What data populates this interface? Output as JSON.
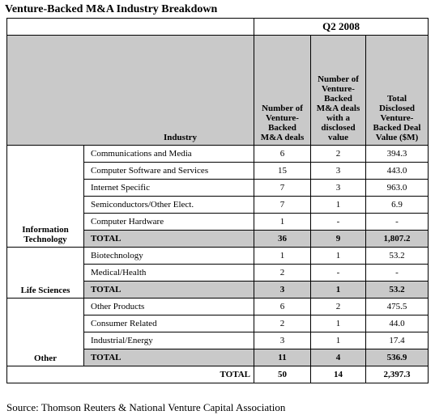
{
  "title": "Venture-Backed M&A Industry Breakdown",
  "table": {
    "period": "Q2 2008",
    "headers": [
      "Industry",
      "Number of Venture-Backed M&A deals",
      "Number of Venture-Backed M&A deals with a disclosed value",
      "Total Disclosed Venture-Backed Deal Value ($M)"
    ],
    "groups": [
      {
        "sector": "Information Technology",
        "rows": [
          [
            "Communications and Media",
            "6",
            "2",
            "394.3"
          ],
          [
            "Computer Software and Services",
            "15",
            "3",
            "443.0"
          ],
          [
            "Internet Specific",
            "7",
            "3",
            "963.0"
          ],
          [
            "Semiconductors/Other Elect.",
            "7",
            "1",
            "6.9"
          ],
          [
            "Computer Hardware",
            "1",
            "-",
            "-"
          ]
        ],
        "total": [
          "TOTAL",
          "36",
          "9",
          "1,807.2"
        ]
      },
      {
        "sector": "Life Sciences",
        "rows": [
          [
            "Biotechnology",
            "1",
            "1",
            "53.2"
          ],
          [
            "Medical/Health",
            "2",
            "-",
            "-"
          ]
        ],
        "total": [
          "TOTAL",
          "3",
          "1",
          "53.2"
        ]
      },
      {
        "sector": "Other",
        "rows": [
          [
            "Other Products",
            "6",
            "2",
            "475.5"
          ],
          [
            "Consumer Related",
            "2",
            "1",
            "44.0"
          ],
          [
            "Industrial/Energy",
            "3",
            "1",
            "17.4"
          ]
        ],
        "total": [
          "TOTAL",
          "11",
          "4",
          "536.9"
        ]
      }
    ],
    "grand_total": [
      "TOTAL",
      "50",
      "14",
      "2,397.3"
    ]
  },
  "source": "Source: Thomson Reuters & National Venture Capital Association"
}
